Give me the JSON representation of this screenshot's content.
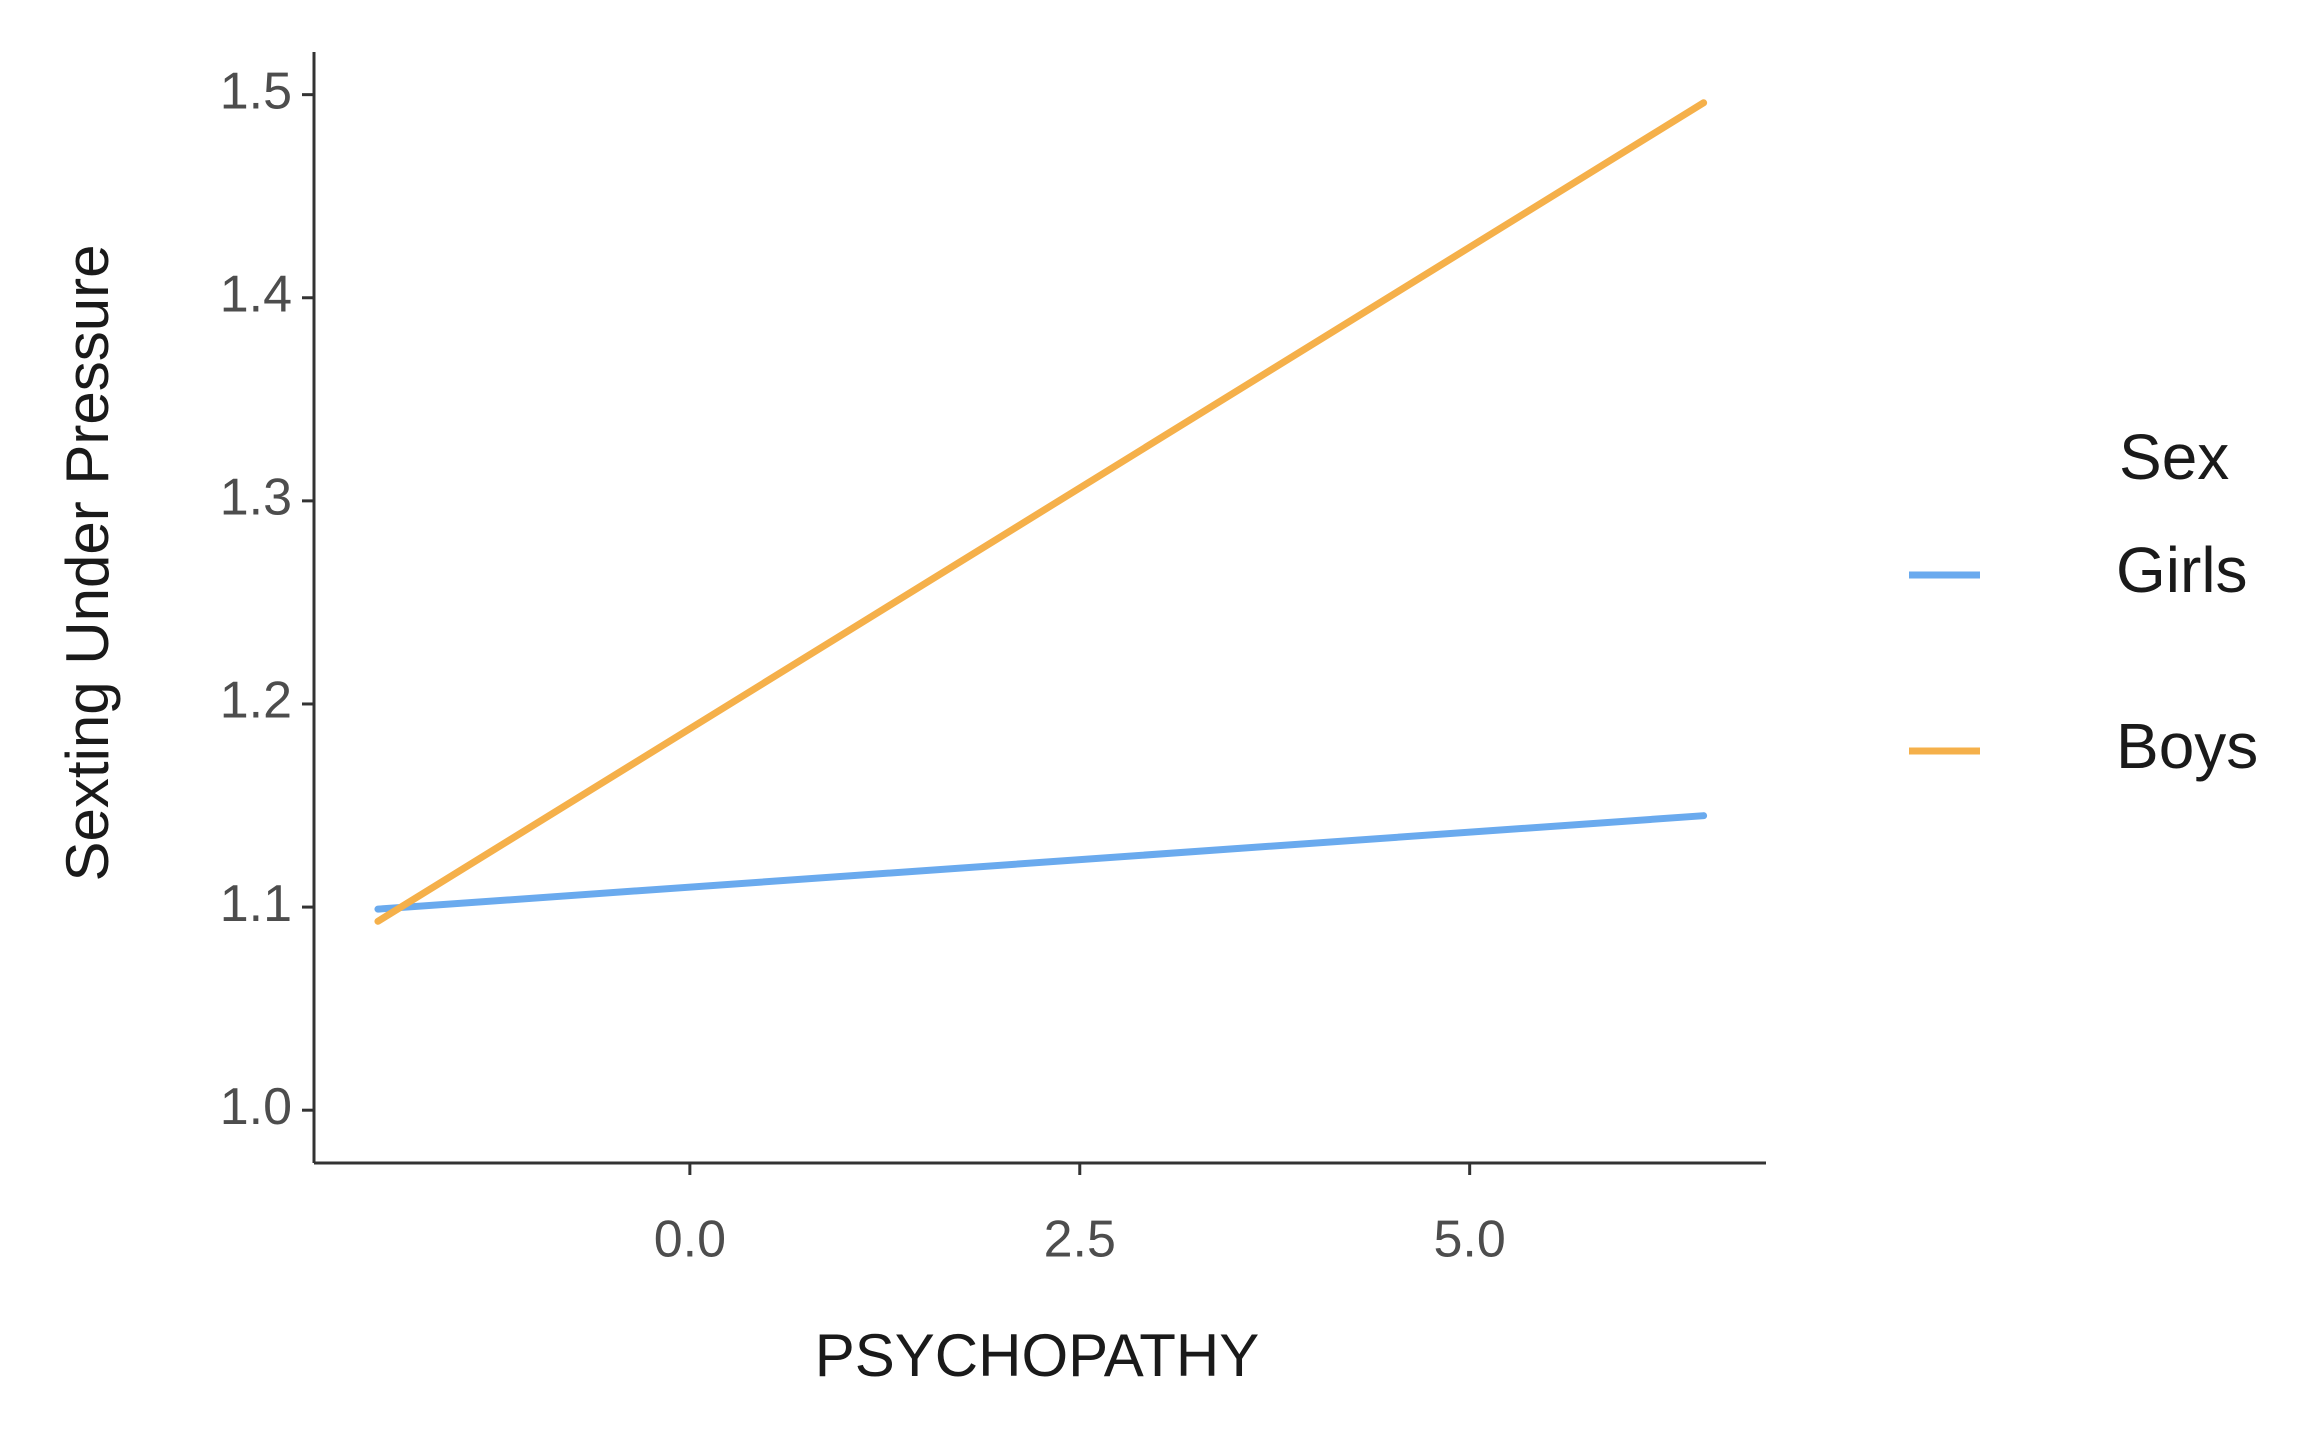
{
  "chart_data": {
    "type": "line",
    "x_label": "PSYCHOPATHY",
    "y_label": "Sexting Under Pressure",
    "legend_title": "Sex",
    "legend_position": "right",
    "x": [
      -2.0,
      6.5
    ],
    "series": [
      {
        "name": "Girls",
        "color": "#6aaaee",
        "values": [
          1.099,
          1.145
        ]
      },
      {
        "name": "Boys",
        "color": "#f5b04a",
        "values": [
          1.093,
          1.496
        ]
      }
    ],
    "xlim": [
      -2.41,
      6.9
    ],
    "xticks": [
      {
        "value": 0,
        "label": "0.0"
      },
      2.5,
      {
        "value": 5,
        "label": "5.0"
      }
    ],
    "ylim": [
      0.974,
      1.521
    ],
    "yticks": [
      {
        "value": 1,
        "label": "1.0"
      },
      1.1,
      1.2,
      1.3,
      1.4,
      1.5
    ],
    "grid": false
  }
}
